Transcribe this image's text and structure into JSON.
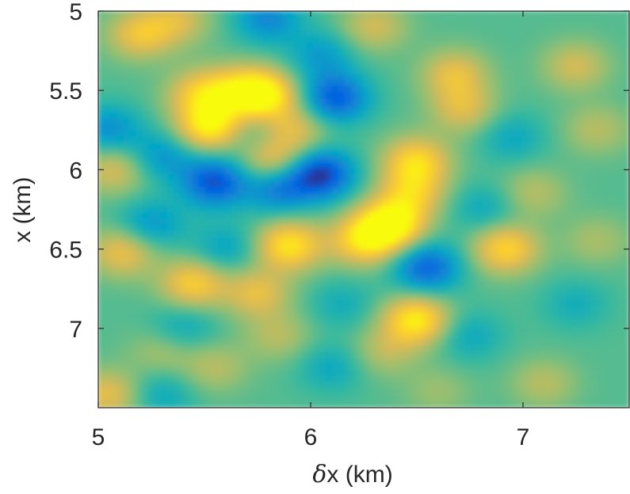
{
  "chart_data": {
    "type": "heatmap",
    "title": "",
    "xlabel": "δx (km)",
    "xlabel_parts": {
      "symbol": "δ",
      "rest": "x (km)"
    },
    "ylabel": "x (km)",
    "xlim": [
      5,
      7.5
    ],
    "ylim": [
      5,
      7.5
    ],
    "y_reversed": true,
    "xticks": [
      5,
      6,
      7
    ],
    "xtick_labels": [
      "5",
      "6",
      "7"
    ],
    "yticks": [
      5,
      5.5,
      6,
      6.5,
      7
    ],
    "ytick_labels": [
      "5",
      "5.5",
      "6",
      "6.5",
      "7"
    ],
    "colormap": "parula",
    "colormap_colors": [
      "#352a87",
      "#0363e1",
      "#1485d4",
      "#06a7c6",
      "#38b99e",
      "#92bf73",
      "#d9ba56",
      "#fcce2e",
      "#f9fb0e"
    ],
    "value_range": [
      -1,
      1
    ],
    "background_level": 0.08,
    "grid": false,
    "colorbar": false,
    "features": [
      {
        "x": 5.78,
        "y": 5.53,
        "value": 0.95
      },
      {
        "x": 5.53,
        "y": 5.73,
        "value": 0.9
      },
      {
        "x": 5.48,
        "y": 5.52,
        "value": 0.55
      },
      {
        "x": 5.65,
        "y": 5.5,
        "value": 0.45
      },
      {
        "x": 5.82,
        "y": 5.95,
        "value": 0.6
      },
      {
        "x": 5.93,
        "y": 5.75,
        "value": 0.45
      },
      {
        "x": 5.72,
        "y": 5.78,
        "value": -0.25
      },
      {
        "x": 5.2,
        "y": 5.15,
        "value": 0.55
      },
      {
        "x": 5.38,
        "y": 5.06,
        "value": 0.4
      },
      {
        "x": 5.08,
        "y": 6.0,
        "value": 0.45
      },
      {
        "x": 5.55,
        "y": 6.08,
        "value": -0.9
      },
      {
        "x": 6.05,
        "y": 6.03,
        "value": -1.0
      },
      {
        "x": 5.85,
        "y": 6.12,
        "value": -0.65
      },
      {
        "x": 6.12,
        "y": 5.55,
        "value": -0.85
      },
      {
        "x": 6.05,
        "y": 5.28,
        "value": -0.4
      },
      {
        "x": 5.8,
        "y": 5.05,
        "value": -0.55
      },
      {
        "x": 5.05,
        "y": 5.75,
        "value": -0.5
      },
      {
        "x": 5.3,
        "y": 5.92,
        "value": -0.45
      },
      {
        "x": 6.38,
        "y": 6.35,
        "value": 1.0
      },
      {
        "x": 6.25,
        "y": 6.45,
        "value": 0.7
      },
      {
        "x": 5.9,
        "y": 6.48,
        "value": 0.8
      },
      {
        "x": 6.5,
        "y": 5.95,
        "value": 0.7
      },
      {
        "x": 6.48,
        "y": 6.15,
        "value": 0.55
      },
      {
        "x": 6.55,
        "y": 6.62,
        "value": -0.8
      },
      {
        "x": 6.92,
        "y": 6.5,
        "value": 0.7
      },
      {
        "x": 6.5,
        "y": 6.95,
        "value": 0.85
      },
      {
        "x": 6.3,
        "y": 5.1,
        "value": 0.4
      },
      {
        "x": 6.68,
        "y": 5.4,
        "value": 0.5
      },
      {
        "x": 6.72,
        "y": 5.62,
        "value": 0.45
      },
      {
        "x": 5.12,
        "y": 6.52,
        "value": 0.55
      },
      {
        "x": 5.45,
        "y": 6.72,
        "value": 0.65
      },
      {
        "x": 5.75,
        "y": 6.78,
        "value": 0.5
      },
      {
        "x": 5.25,
        "y": 6.35,
        "value": -0.45
      },
      {
        "x": 5.6,
        "y": 6.5,
        "value": -0.35
      },
      {
        "x": 5.4,
        "y": 7.0,
        "value": -0.3
      },
      {
        "x": 5.05,
        "y": 7.42,
        "value": 0.5
      },
      {
        "x": 5.3,
        "y": 7.42,
        "value": -0.3
      },
      {
        "x": 5.55,
        "y": 7.25,
        "value": 0.3
      },
      {
        "x": 5.85,
        "y": 7.05,
        "value": 0.3
      },
      {
        "x": 6.1,
        "y": 7.25,
        "value": -0.3
      },
      {
        "x": 6.35,
        "y": 7.15,
        "value": 0.3
      },
      {
        "x": 6.15,
        "y": 6.85,
        "value": -0.25
      },
      {
        "x": 6.75,
        "y": 7.05,
        "value": -0.3
      },
      {
        "x": 6.82,
        "y": 6.25,
        "value": -0.3
      },
      {
        "x": 6.95,
        "y": 5.8,
        "value": -0.3
      },
      {
        "x": 7.05,
        "y": 6.15,
        "value": 0.3
      },
      {
        "x": 7.25,
        "y": 5.35,
        "value": 0.4
      },
      {
        "x": 7.35,
        "y": 5.75,
        "value": 0.3
      },
      {
        "x": 7.1,
        "y": 7.35,
        "value": 0.3
      },
      {
        "x": 7.25,
        "y": 6.85,
        "value": -0.25
      },
      {
        "x": 7.35,
        "y": 6.45,
        "value": 0.25
      },
      {
        "x": 6.6,
        "y": 7.4,
        "value": 0.2
      },
      {
        "x": 5.3,
        "y": 7.15,
        "value": 0.25
      }
    ]
  }
}
